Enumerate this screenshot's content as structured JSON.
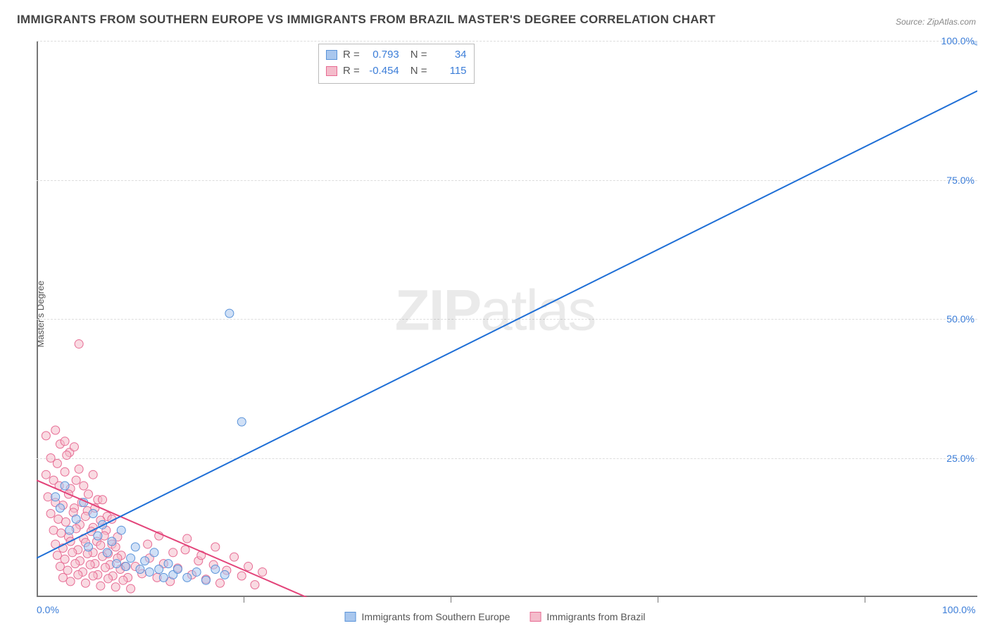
{
  "title": "IMMIGRANTS FROM SOUTHERN EUROPE VS IMMIGRANTS FROM BRAZIL MASTER'S DEGREE CORRELATION CHART",
  "source": "Source: ZipAtlas.com",
  "ylabel": "Master's Degree",
  "watermark_a": "ZIP",
  "watermark_b": "atlas",
  "chart": {
    "type": "scatter",
    "xlim": [
      0,
      100
    ],
    "ylim": [
      0,
      100
    ],
    "yticks": [
      25,
      50,
      75,
      100
    ],
    "ytick_labels": [
      "25.0%",
      "50.0%",
      "75.0%",
      "100.0%"
    ],
    "xtick_labels": [
      "0.0%",
      "100.0%"
    ],
    "xtick_positions": [
      0,
      100
    ],
    "xgrid_ticks": [
      22,
      44,
      66,
      88
    ],
    "grid_color": "#dddddd",
    "axis_color": "#777777",
    "background_color": "#ffffff",
    "point_radius": 6,
    "point_opacity": 0.55
  },
  "series": [
    {
      "name": "Immigrants from Southern Europe",
      "fill": "#a9c7ee",
      "stroke": "#5a93d9",
      "line_color": "#1f6fd6",
      "line_width": 2,
      "R": "0.793",
      "N": "34",
      "regression": {
        "x1": 0,
        "y1": 7,
        "x2": 100,
        "y2": 91
      },
      "points": [
        [
          100,
          100
        ],
        [
          20.5,
          51
        ],
        [
          21.8,
          31.5
        ],
        [
          2,
          18
        ],
        [
          2.5,
          16
        ],
        [
          3,
          20
        ],
        [
          3.5,
          12
        ],
        [
          4.2,
          14
        ],
        [
          5,
          17
        ],
        [
          5.5,
          9
        ],
        [
          6,
          15
        ],
        [
          6.5,
          11
        ],
        [
          7,
          13
        ],
        [
          7.5,
          8
        ],
        [
          8,
          10
        ],
        [
          8.5,
          6
        ],
        [
          9,
          12
        ],
        [
          9.5,
          5.5
        ],
        [
          10,
          7
        ],
        [
          10.5,
          9
        ],
        [
          11,
          5
        ],
        [
          11.5,
          6.5
        ],
        [
          12,
          4.5
        ],
        [
          12.5,
          8
        ],
        [
          13,
          5
        ],
        [
          13.5,
          3.5
        ],
        [
          14,
          6
        ],
        [
          14.5,
          4
        ],
        [
          15,
          5
        ],
        [
          16,
          3.5
        ],
        [
          17,
          4.5
        ],
        [
          18,
          3
        ],
        [
          19,
          5
        ],
        [
          20,
          4
        ]
      ]
    },
    {
      "name": "Immigrants from Brazil",
      "fill": "#f4bccb",
      "stroke": "#e76b93",
      "line_color": "#e3447a",
      "line_width": 2,
      "R": "-0.454",
      "N": "115",
      "regression": {
        "x1": 0,
        "y1": 21,
        "x2": 30,
        "y2": -1
      },
      "points": [
        [
          4.5,
          45.5
        ],
        [
          1,
          29
        ],
        [
          2,
          30
        ],
        [
          2.5,
          27.5
        ],
        [
          3,
          28
        ],
        [
          3.5,
          26
        ],
        [
          1.5,
          25
        ],
        [
          2.2,
          24
        ],
        [
          3.2,
          25.5
        ],
        [
          4,
          27
        ],
        [
          4.5,
          23
        ],
        [
          1,
          22
        ],
        [
          1.8,
          21
        ],
        [
          2.4,
          20
        ],
        [
          3,
          22.5
        ],
        [
          3.6,
          19.5
        ],
        [
          4.2,
          21
        ],
        [
          5,
          20
        ],
        [
          5.5,
          18.5
        ],
        [
          6,
          22
        ],
        [
          6.5,
          17.5
        ],
        [
          1.2,
          18
        ],
        [
          2,
          17
        ],
        [
          2.8,
          16.5
        ],
        [
          3.4,
          18.5
        ],
        [
          4,
          16
        ],
        [
          4.8,
          17
        ],
        [
          5.4,
          15.5
        ],
        [
          6.2,
          16
        ],
        [
          7,
          17.5
        ],
        [
          7.5,
          14.5
        ],
        [
          1.5,
          15
        ],
        [
          2.3,
          14
        ],
        [
          3.1,
          13.5
        ],
        [
          3.9,
          15.2
        ],
        [
          4.6,
          13
        ],
        [
          5.2,
          14.5
        ],
        [
          6,
          12.5
        ],
        [
          6.8,
          13.8
        ],
        [
          7.4,
          12
        ],
        [
          8,
          14
        ],
        [
          1.8,
          12
        ],
        [
          2.6,
          11.5
        ],
        [
          3.4,
          10.8
        ],
        [
          4.2,
          12.3
        ],
        [
          5,
          10.5
        ],
        [
          5.8,
          11.8
        ],
        [
          6.4,
          10
        ],
        [
          7.2,
          11
        ],
        [
          8,
          9.5
        ],
        [
          8.6,
          10.8
        ],
        [
          2,
          9.5
        ],
        [
          2.8,
          8.8
        ],
        [
          3.6,
          10
        ],
        [
          4.4,
          8.5
        ],
        [
          5.2,
          9.8
        ],
        [
          6,
          8
        ],
        [
          6.8,
          9.3
        ],
        [
          7.6,
          7.8
        ],
        [
          8.4,
          9
        ],
        [
          9,
          7.5
        ],
        [
          2.2,
          7.5
        ],
        [
          3,
          6.8
        ],
        [
          3.8,
          8
        ],
        [
          4.6,
          6.5
        ],
        [
          5.4,
          7.8
        ],
        [
          6.2,
          6
        ],
        [
          7,
          7.3
        ],
        [
          7.8,
          5.8
        ],
        [
          8.6,
          7
        ],
        [
          9.4,
          5.5
        ],
        [
          2.5,
          5.5
        ],
        [
          3.3,
          4.8
        ],
        [
          4.1,
          6
        ],
        [
          4.9,
          4.5
        ],
        [
          5.7,
          5.8
        ],
        [
          6.5,
          4
        ],
        [
          7.3,
          5.3
        ],
        [
          8.1,
          3.8
        ],
        [
          8.9,
          5
        ],
        [
          9.7,
          3.5
        ],
        [
          2.8,
          3.5
        ],
        [
          3.6,
          2.8
        ],
        [
          4.4,
          4
        ],
        [
          5.2,
          2.5
        ],
        [
          6,
          3.8
        ],
        [
          6.8,
          2
        ],
        [
          7.6,
          3.3
        ],
        [
          8.4,
          1.8
        ],
        [
          9.2,
          3
        ],
        [
          10,
          1.5
        ],
        [
          10.5,
          5.5
        ],
        [
          11.2,
          4.2
        ],
        [
          12,
          7
        ],
        [
          12.8,
          3.5
        ],
        [
          13.5,
          6
        ],
        [
          14.2,
          2.8
        ],
        [
          15,
          5.2
        ],
        [
          15.8,
          8.5
        ],
        [
          16.5,
          4
        ],
        [
          17.2,
          6.5
        ],
        [
          18,
          3.2
        ],
        [
          18.8,
          5.8
        ],
        [
          19.5,
          2.5
        ],
        [
          20.2,
          4.8
        ],
        [
          21,
          7.2
        ],
        [
          21.8,
          3.8
        ],
        [
          22.5,
          5.5
        ],
        [
          23.2,
          2.2
        ],
        [
          24,
          4.5
        ],
        [
          11.8,
          9.5
        ],
        [
          13,
          11
        ],
        [
          14.5,
          8
        ],
        [
          16,
          10.5
        ],
        [
          17.5,
          7.5
        ],
        [
          19,
          9
        ]
      ]
    }
  ],
  "bottom_legend": [
    {
      "swatch_fill": "#a9c7ee",
      "swatch_stroke": "#5a93d9",
      "label": "Immigrants from Southern Europe"
    },
    {
      "swatch_fill": "#f4bccb",
      "swatch_stroke": "#e76b93",
      "label": "Immigrants from Brazil"
    }
  ]
}
